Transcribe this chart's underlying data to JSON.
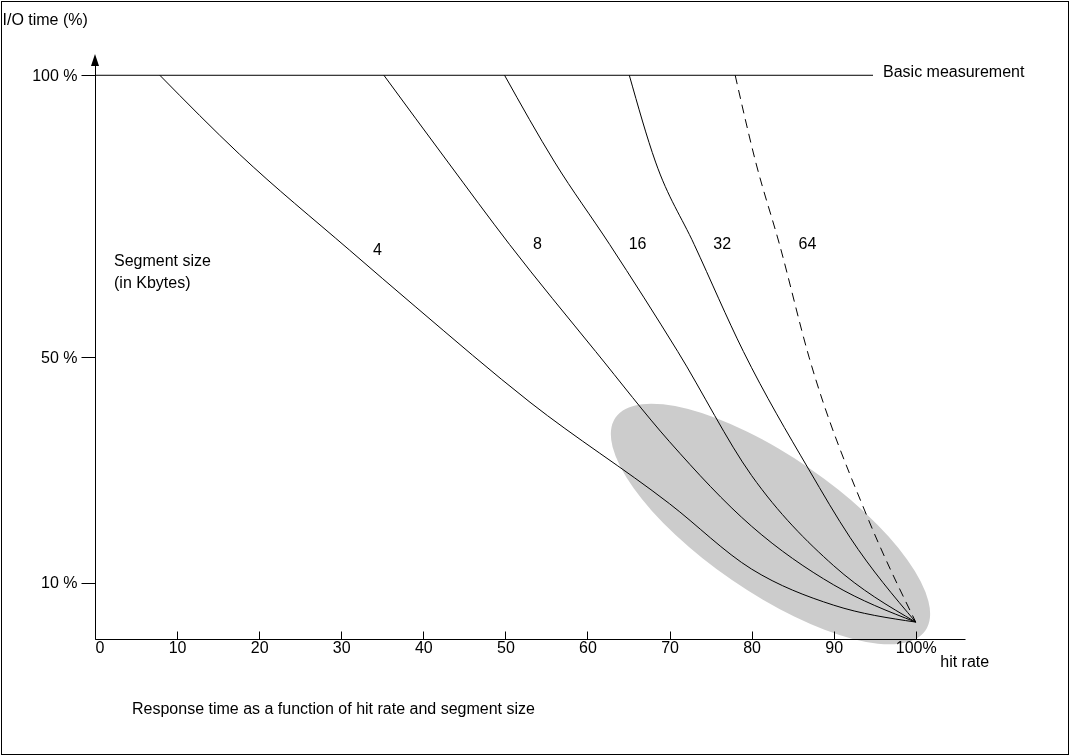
{
  "chart_data": {
    "type": "line",
    "ylabel": "I/O time (%)",
    "xlabel": "hit rate",
    "legend_title": "Segment size\n(in Kbytes)",
    "xlim": [
      0,
      106
    ],
    "xticks": [
      0,
      10,
      20,
      30,
      40,
      50,
      60,
      70,
      80,
      90,
      {
        "value": 100,
        "label": "100%"
      }
    ],
    "ylim": [
      0,
      102
    ],
    "yticks": [
      {
        "value": 10,
        "label": "10 %"
      },
      {
        "value": 50,
        "label": "50 %"
      },
      {
        "value": 100,
        "label": "100 %"
      }
    ],
    "grid": false,
    "series": [
      {
        "name": "4",
        "color": "#000000",
        "line_style": "solid",
        "x": [
          7.9,
          17.6,
          31,
          39,
          53,
          70,
          80,
          90,
          100
        ],
        "values": [
          100,
          86,
          69,
          59,
          42,
          24,
          12.4,
          6,
          3
        ]
      },
      {
        "name": "8",
        "color": "#000000",
        "line_style": "solid",
        "x": [
          35.2,
          43,
          50.5,
          61,
          70,
          80,
          90,
          100
        ],
        "values": [
          100,
          84.6,
          70,
          51,
          35,
          20,
          9.6,
          3
        ]
      },
      {
        "name": "16",
        "color": "#000000",
        "line_style": "solid",
        "x": [
          49.9,
          56,
          62.7,
          71,
          80,
          90,
          100
        ],
        "values": [
          100,
          84.6,
          70,
          51,
          29,
          13,
          3
        ]
      },
      {
        "name": "32",
        "color": "#000000",
        "line_style": "solid",
        "x": [
          65.1,
          68.3,
          73,
          79,
          87,
          92,
          100
        ],
        "values": [
          100,
          84.6,
          70,
          51,
          30,
          18,
          3
        ]
      },
      {
        "name": "64",
        "color": "#000000",
        "line_style": "dashed",
        "x": [
          78,
          80.5,
          83.4,
          87,
          94,
          100
        ],
        "values": [
          100,
          84.6,
          70,
          50,
          22,
          3
        ]
      }
    ],
    "ref_lines": [
      {
        "axis": "y",
        "value": 100,
        "label": "Basic measurement",
        "color": "#000000"
      }
    ],
    "annotations": [
      "Response time as a function of hit rate and segment size"
    ]
  }
}
